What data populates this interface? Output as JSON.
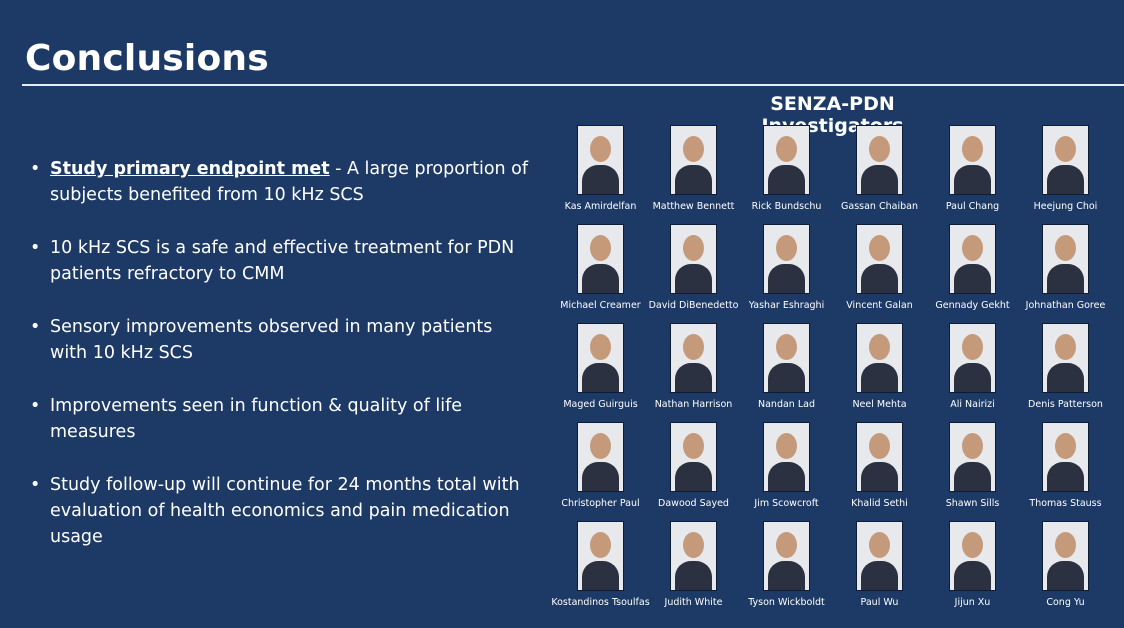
{
  "slide": {
    "title": "Conclusions",
    "bullets": [
      {
        "lead": "Study primary endpoint met",
        "text": " - A large proportion of subjects benefited from 10 kHz SCS"
      },
      {
        "lead": "",
        "text": "10 kHz SCS is a safe and effective treatment for PDN patients refractory to CMM"
      },
      {
        "lead": "",
        "text": "Sensory improvements observed in many patients with 10 kHz SCS"
      },
      {
        "lead": "",
        "text": "Improvements seen in function & quality of life measures"
      },
      {
        "lead": "",
        "text": "Study follow-up will continue for 24 months total with evaluation of health economics and pain medication usage"
      }
    ]
  },
  "investigators": {
    "title": "SENZA-PDN Investigators",
    "people": [
      "Kas Amirdelfan",
      "Matthew Bennett",
      "Rick Bundschu",
      "Gassan Chaiban",
      "Paul Chang",
      "Heejung Choi",
      "Michael Creamer",
      "David DiBenedetto",
      "Yashar Eshraghi",
      "Vincent Galan",
      "Gennady Gekht",
      "Johnathan Goree",
      "Maged Guirguis",
      "Nathan Harrison",
      "Nandan Lad",
      "Neel Mehta",
      "Ali Nairizi",
      "Denis Patterson",
      "Christopher Paul",
      "Dawood Sayed",
      "Jim Scowcroft",
      "Khalid Sethi",
      "Shawn Sills",
      "Thomas Stauss",
      "Kostandinos Tsoulfas",
      "Judith White",
      "Tyson Wickboldt",
      "Paul Wu",
      "Jijun Xu",
      "Cong Yu"
    ]
  }
}
